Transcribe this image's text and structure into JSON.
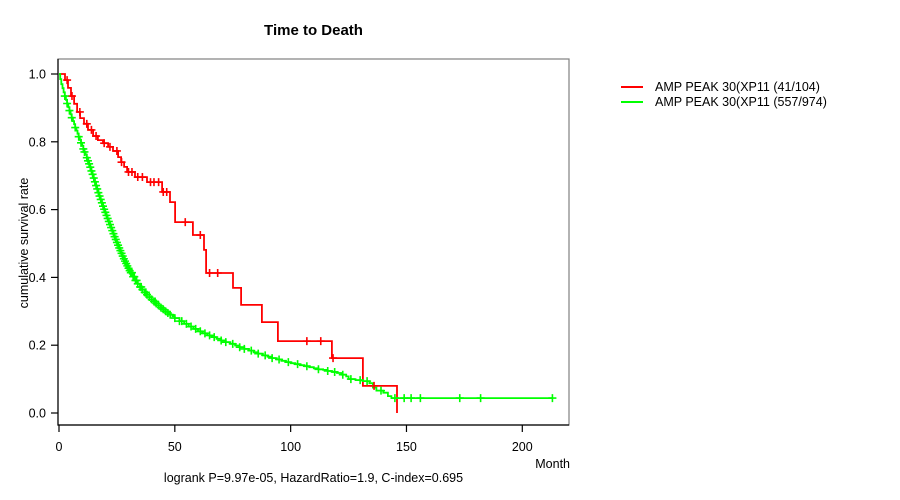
{
  "chart_data": {
    "type": "line",
    "subtype": "kaplan-meier-step",
    "title": "Time to Death",
    "xlabel": "Month",
    "ylabel": "cumulative survival rate",
    "subtitle": "logrank P=9.97e-05, HazardRatio=1.9, C-index=0.695",
    "xlim": [
      0,
      220
    ],
    "ylim": [
      0.0,
      1.0
    ],
    "x_ticks": [
      0,
      50,
      100,
      150,
      200
    ],
    "y_ticks": [
      "0.0",
      "0.2",
      "0.4",
      "0.6",
      "0.8",
      "1.0"
    ],
    "grid": "off",
    "legend_position": "outside-right",
    "frame_color": "#808080",
    "axis_color": "#000000",
    "series": [
      {
        "name": "AMP PEAK 30(XP11 (41/104)",
        "color": "#ff0000",
        "events_over_n": "41/104",
        "step_points": [
          [
            0,
            1.0
          ],
          [
            2.6,
            0.982
          ],
          [
            3.9,
            0.959
          ],
          [
            5.2,
            0.935
          ],
          [
            6.5,
            0.912
          ],
          [
            7.8,
            0.888
          ],
          [
            9.1,
            0.87
          ],
          [
            10.8,
            0.853
          ],
          [
            12.5,
            0.835
          ],
          [
            14.7,
            0.817
          ],
          [
            16.8,
            0.805
          ],
          [
            19.0,
            0.796
          ],
          [
            21.2,
            0.785
          ],
          [
            23.3,
            0.773
          ],
          [
            25.5,
            0.755
          ],
          [
            26.8,
            0.74
          ],
          [
            28.1,
            0.726
          ],
          [
            29.4,
            0.711
          ],
          [
            32.8,
            0.696
          ],
          [
            38.0,
            0.681
          ],
          [
            44.5,
            0.652
          ],
          [
            47.9,
            0.622
          ],
          [
            50.1,
            0.563
          ],
          [
            57.8,
            0.525
          ],
          [
            62.6,
            0.481
          ],
          [
            63.5,
            0.413
          ],
          [
            75.1,
            0.369
          ],
          [
            78.6,
            0.319
          ],
          [
            87.6,
            0.268
          ],
          [
            94.5,
            0.212
          ],
          [
            117.8,
            0.162
          ],
          [
            131.2,
            0.08
          ],
          [
            145.9,
            0.0
          ]
        ],
        "censor_times": [
          3.5,
          5.6,
          9,
          12,
          14,
          16,
          19.5,
          22,
          25,
          27,
          30,
          31.5,
          34,
          36,
          39.5,
          41,
          43,
          45,
          46.5,
          54.5,
          61,
          65,
          68.5,
          107,
          113,
          118.3,
          136
        ]
      },
      {
        "name": "AMP PEAK 30(XP11 (557/974)",
        "color": "#00ff00",
        "events_over_n": "557/974",
        "step_points": [
          [
            0,
            1.0
          ],
          [
            0.5,
            0.985
          ],
          [
            1,
            0.97
          ],
          [
            1.5,
            0.958
          ],
          [
            2,
            0.946
          ],
          [
            2.5,
            0.935
          ],
          [
            3,
            0.924
          ],
          [
            3.5,
            0.913
          ],
          [
            4,
            0.902
          ],
          [
            4.5,
            0.892
          ],
          [
            5,
            0.881
          ],
          [
            5.5,
            0.871
          ],
          [
            6,
            0.861
          ],
          [
            6.5,
            0.852
          ],
          [
            7,
            0.842
          ],
          [
            7.5,
            0.833
          ],
          [
            8,
            0.824
          ],
          [
            8.5,
            0.815
          ],
          [
            9,
            0.806
          ],
          [
            9.5,
            0.797
          ],
          [
            10,
            0.788
          ],
          [
            10.5,
            0.779
          ],
          [
            11,
            0.77
          ],
          [
            11.5,
            0.762
          ],
          [
            12,
            0.753
          ],
          [
            12.5,
            0.744
          ],
          [
            13,
            0.735
          ],
          [
            13.5,
            0.725
          ],
          [
            14,
            0.714
          ],
          [
            14.5,
            0.704
          ],
          [
            15,
            0.693
          ],
          [
            15.5,
            0.682
          ],
          [
            16,
            0.671
          ],
          [
            16.5,
            0.661
          ],
          [
            17,
            0.65
          ],
          [
            17.5,
            0.64
          ],
          [
            18,
            0.63
          ],
          [
            18.5,
            0.62
          ],
          [
            19,
            0.61
          ],
          [
            19.5,
            0.601
          ],
          [
            20,
            0.592
          ],
          [
            20.5,
            0.583
          ],
          [
            21,
            0.574
          ],
          [
            21.5,
            0.565
          ],
          [
            22,
            0.556
          ],
          [
            22.5,
            0.547
          ],
          [
            23,
            0.538
          ],
          [
            23.5,
            0.529
          ],
          [
            24,
            0.52
          ],
          [
            24.5,
            0.512
          ],
          [
            25,
            0.503
          ],
          [
            25.5,
            0.495
          ],
          [
            26,
            0.487
          ],
          [
            26.5,
            0.479
          ],
          [
            27,
            0.471
          ],
          [
            27.5,
            0.463
          ],
          [
            28,
            0.455
          ],
          [
            28.5,
            0.448
          ],
          [
            29,
            0.441
          ],
          [
            29.5,
            0.434
          ],
          [
            30,
            0.427
          ],
          [
            30.5,
            0.42
          ],
          [
            31,
            0.414
          ],
          [
            32,
            0.402
          ],
          [
            33,
            0.391
          ],
          [
            34,
            0.381
          ],
          [
            35,
            0.372
          ],
          [
            36,
            0.364
          ],
          [
            37,
            0.356
          ],
          [
            38,
            0.349
          ],
          [
            39,
            0.342
          ],
          [
            40,
            0.335
          ],
          [
            41,
            0.329
          ],
          [
            42,
            0.323
          ],
          [
            43,
            0.317
          ],
          [
            44,
            0.311
          ],
          [
            45,
            0.306
          ],
          [
            46,
            0.3
          ],
          [
            47,
            0.295
          ],
          [
            48,
            0.29
          ],
          [
            49,
            0.285
          ],
          [
            50,
            0.28
          ],
          [
            52,
            0.271
          ],
          [
            54,
            0.263
          ],
          [
            56,
            0.255
          ],
          [
            58,
            0.248
          ],
          [
            60,
            0.241
          ],
          [
            62,
            0.235
          ],
          [
            64,
            0.229
          ],
          [
            66,
            0.224
          ],
          [
            68,
            0.219
          ],
          [
            70,
            0.214
          ],
          [
            72,
            0.209
          ],
          [
            74,
            0.204
          ],
          [
            76,
            0.199
          ],
          [
            78,
            0.194
          ],
          [
            80,
            0.189
          ],
          [
            82,
            0.184
          ],
          [
            84,
            0.179
          ],
          [
            86,
            0.175
          ],
          [
            88,
            0.17
          ],
          [
            90,
            0.166
          ],
          [
            92,
            0.162
          ],
          [
            94,
            0.158
          ],
          [
            96,
            0.154
          ],
          [
            98,
            0.15
          ],
          [
            100,
            0.147
          ],
          [
            102,
            0.144
          ],
          [
            104,
            0.141
          ],
          [
            106,
            0.138
          ],
          [
            108,
            0.135
          ],
          [
            110,
            0.132
          ],
          [
            112,
            0.129
          ],
          [
            114,
            0.127
          ],
          [
            116,
            0.124
          ],
          [
            118,
            0.121
          ],
          [
            120,
            0.118
          ],
          [
            122,
            0.113
          ],
          [
            124,
            0.108
          ],
          [
            125,
            0.1
          ],
          [
            128,
            0.097
          ],
          [
            131,
            0.094
          ],
          [
            134,
            0.088
          ],
          [
            135.5,
            0.075
          ],
          [
            137,
            0.066
          ],
          [
            140,
            0.06
          ],
          [
            142,
            0.05
          ],
          [
            143.5,
            0.044
          ],
          [
            213,
            0.044
          ]
        ],
        "censor_times": [
          2.5,
          3.5,
          4.5,
          5.5,
          7,
          8.5,
          9.5,
          10.5,
          11,
          12,
          12.5,
          13,
          13.5,
          14,
          14.5,
          15,
          15.5,
          16,
          16.5,
          17,
          17.5,
          18,
          18.5,
          19,
          19.5,
          20,
          20.5,
          21,
          21.5,
          22,
          22.5,
          23,
          23.5,
          24,
          24.5,
          25,
          25.5,
          26,
          26.5,
          27,
          27.5,
          28,
          28.5,
          29,
          29.5,
          30,
          30.5,
          31,
          31.5,
          32,
          32.5,
          33,
          33.5,
          34,
          35,
          35.5,
          36,
          37,
          37.5,
          38,
          39,
          40,
          41,
          41.5,
          42,
          43,
          44,
          45,
          46,
          47,
          48,
          50,
          52,
          53,
          55,
          57,
          59,
          61,
          63,
          65,
          67,
          70,
          72,
          75,
          78,
          80,
          83,
          86,
          89,
          92,
          95,
          99,
          103,
          107,
          112,
          116,
          119,
          122.5,
          126,
          130,
          133,
          139,
          145,
          149,
          152,
          156,
          173,
          182,
          213
        ]
      }
    ]
  }
}
